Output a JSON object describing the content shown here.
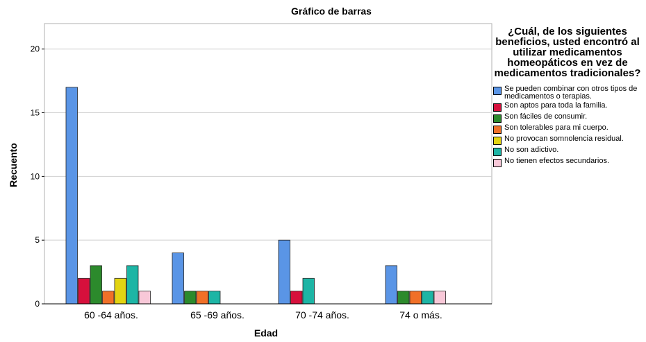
{
  "chart_data": {
    "type": "bar",
    "title": "Gráfico de barras",
    "xlabel": "Edad",
    "ylabel": "Recuento",
    "ylim": [
      0,
      22
    ],
    "yticks": [
      0,
      5,
      10,
      15,
      20
    ],
    "grid": true,
    "legend_position": "right",
    "legend_title": "¿Cuál, de los siguientes beneficios, usted encontró al utilizar medicamentos homeopáticos en vez de medicamentos tradicionales?",
    "categories": [
      "60 -64 años.",
      "65 -69 años.",
      "70 -74 años.",
      "74 o más."
    ],
    "series": [
      {
        "name": "Se pueden combinar con otros tipos de medicamentos o terapias.",
        "color": "#5a95e6",
        "values": [
          17,
          4,
          5,
          3
        ]
      },
      {
        "name": "Son aptos para toda la familia.",
        "color": "#d6103c",
        "values": [
          2,
          0,
          1,
          0
        ]
      },
      {
        "name": "Son fáciles de consumir.",
        "color": "#2c8a2c",
        "values": [
          3,
          1,
          0,
          1
        ]
      },
      {
        "name": "Son tolerables para mi cuerpo.",
        "color": "#f07028",
        "values": [
          1,
          1,
          0,
          1
        ]
      },
      {
        "name": "No provocan somnolencia residual.",
        "color": "#e3d412",
        "values": [
          2,
          0,
          0,
          0
        ]
      },
      {
        "name": "No son adictivo.",
        "color": "#1db5a5",
        "values": [
          3,
          1,
          2,
          1
        ]
      },
      {
        "name": "No tienen efectos secundarios.",
        "color": "#f8c8d8",
        "values": [
          1,
          0,
          0,
          1
        ]
      }
    ]
  }
}
